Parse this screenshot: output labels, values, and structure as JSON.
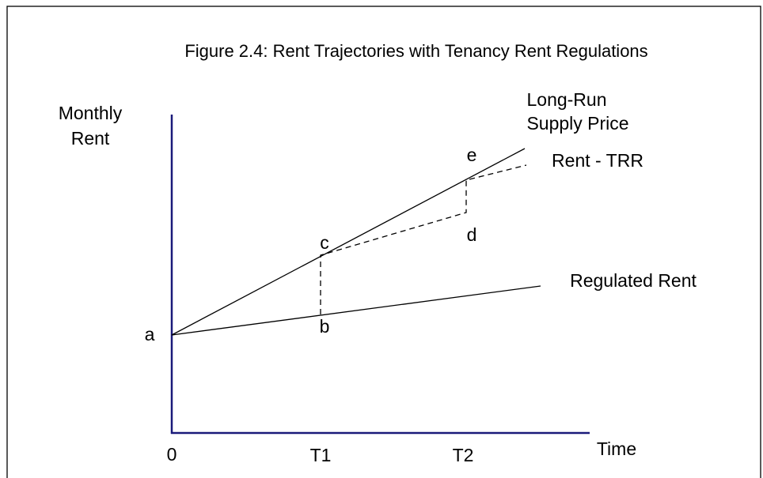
{
  "title": "Figure 2.4: Rent Trajectories with Tenancy Rent Regulations",
  "axes": {
    "y_label": [
      "Monthly",
      "Rent"
    ],
    "x_label": "Time",
    "origin": "0",
    "x_marks": [
      "T1",
      "T2"
    ]
  },
  "points": {
    "a": "a",
    "b": "b",
    "c": "c",
    "d": "d",
    "e": "e"
  },
  "lines": {
    "long_run": [
      "Long-Run",
      "Supply Price"
    ],
    "rent_trr": "Rent - TRR",
    "regulated": "Regulated Rent"
  }
}
